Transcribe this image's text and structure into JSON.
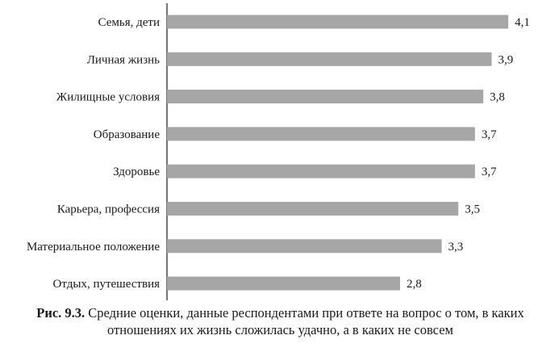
{
  "chart_data": {
    "type": "bar",
    "orientation": "horizontal",
    "categories": [
      "Семья, дети",
      "Личная жизнь",
      "Жилищные условия",
      "Образование",
      "Здоровье",
      "Карьера, профессия",
      "Материальное положение",
      "Отдых, путешествия"
    ],
    "values": [
      4.1,
      3.9,
      3.8,
      3.7,
      3.7,
      3.5,
      3.3,
      2.8
    ],
    "value_labels": [
      "4,1",
      "3,9",
      "3,8",
      "3,7",
      "3,7",
      "3,5",
      "3,3",
      "2,8"
    ],
    "bar_color": "#a6a6a6",
    "axis_line": true,
    "grid": false,
    "legend": "none"
  },
  "caption": {
    "label": "Рис. 9.3.",
    "text": "Средние оценки, данные респондентами при ответе на вопрос о том, в каких отношениях их жизнь сложилась удачно, а в каких не совсем"
  }
}
